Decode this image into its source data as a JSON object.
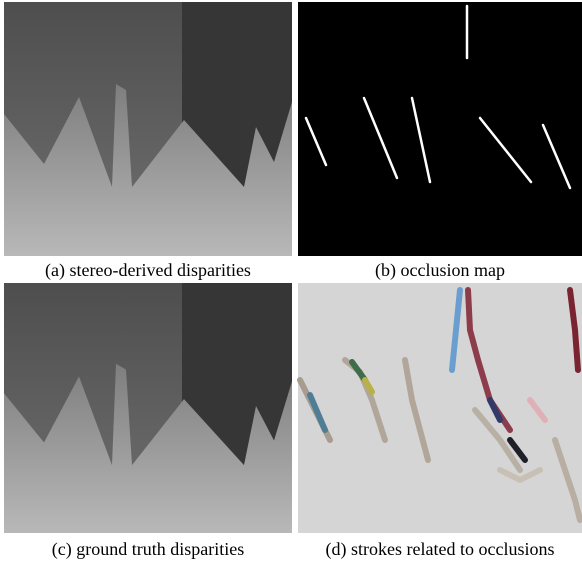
{
  "panels": [
    {
      "caption": "(a) stereo-derived disparities"
    },
    {
      "caption": "(b) occlusion map"
    },
    {
      "caption": "(c) ground truth disparities"
    },
    {
      "caption": "(d) strokes related to occlusions"
    }
  ]
}
